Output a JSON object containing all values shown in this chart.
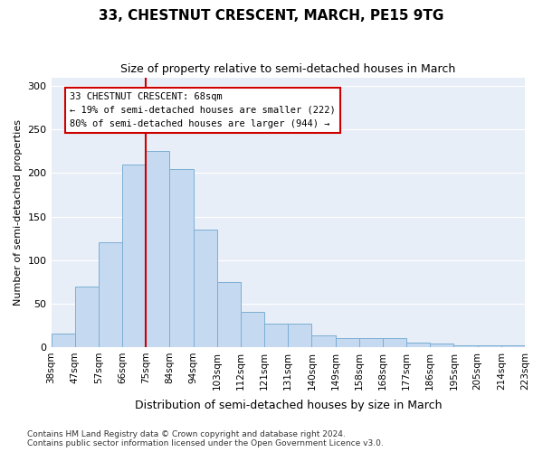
{
  "title": "33, CHESTNUT CRESCENT, MARCH, PE15 9TG",
  "subtitle": "Size of property relative to semi-detached houses in March",
  "xlabel": "Distribution of semi-detached houses by size in March",
  "ylabel": "Number of semi-detached properties",
  "bin_labels": [
    "38sqm",
    "47sqm",
    "57sqm",
    "66sqm",
    "75sqm",
    "84sqm",
    "94sqm",
    "103sqm",
    "112sqm",
    "121sqm",
    "131sqm",
    "140sqm",
    "149sqm",
    "158sqm",
    "168sqm",
    "177sqm",
    "186sqm",
    "195sqm",
    "205sqm",
    "214sqm",
    "223sqm"
  ],
  "bar_heights": [
    15,
    70,
    120,
    210,
    225,
    205,
    135,
    75,
    40,
    27,
    27,
    13,
    10,
    10,
    10,
    5,
    4,
    2,
    2,
    2
  ],
  "bar_color": "#c5d9f1",
  "bar_edge_color": "#7bafd4",
  "vline_x_index": 3.5,
  "vline_color": "#cc0000",
  "annotation_title": "33 CHESTNUT CRESCENT: 68sqm",
  "annotation_line1": "← 19% of semi-detached houses are smaller (222)",
  "annotation_line2": "80% of semi-detached houses are larger (944) →",
  "annotation_box_color": "#cc0000",
  "ylim": [
    0,
    310
  ],
  "yticks": [
    0,
    50,
    100,
    150,
    200,
    250,
    300
  ],
  "background_color": "#e8eef7",
  "footer_line1": "Contains HM Land Registry data © Crown copyright and database right 2024.",
  "footer_line2": "Contains public sector information licensed under the Open Government Licence v3.0."
}
